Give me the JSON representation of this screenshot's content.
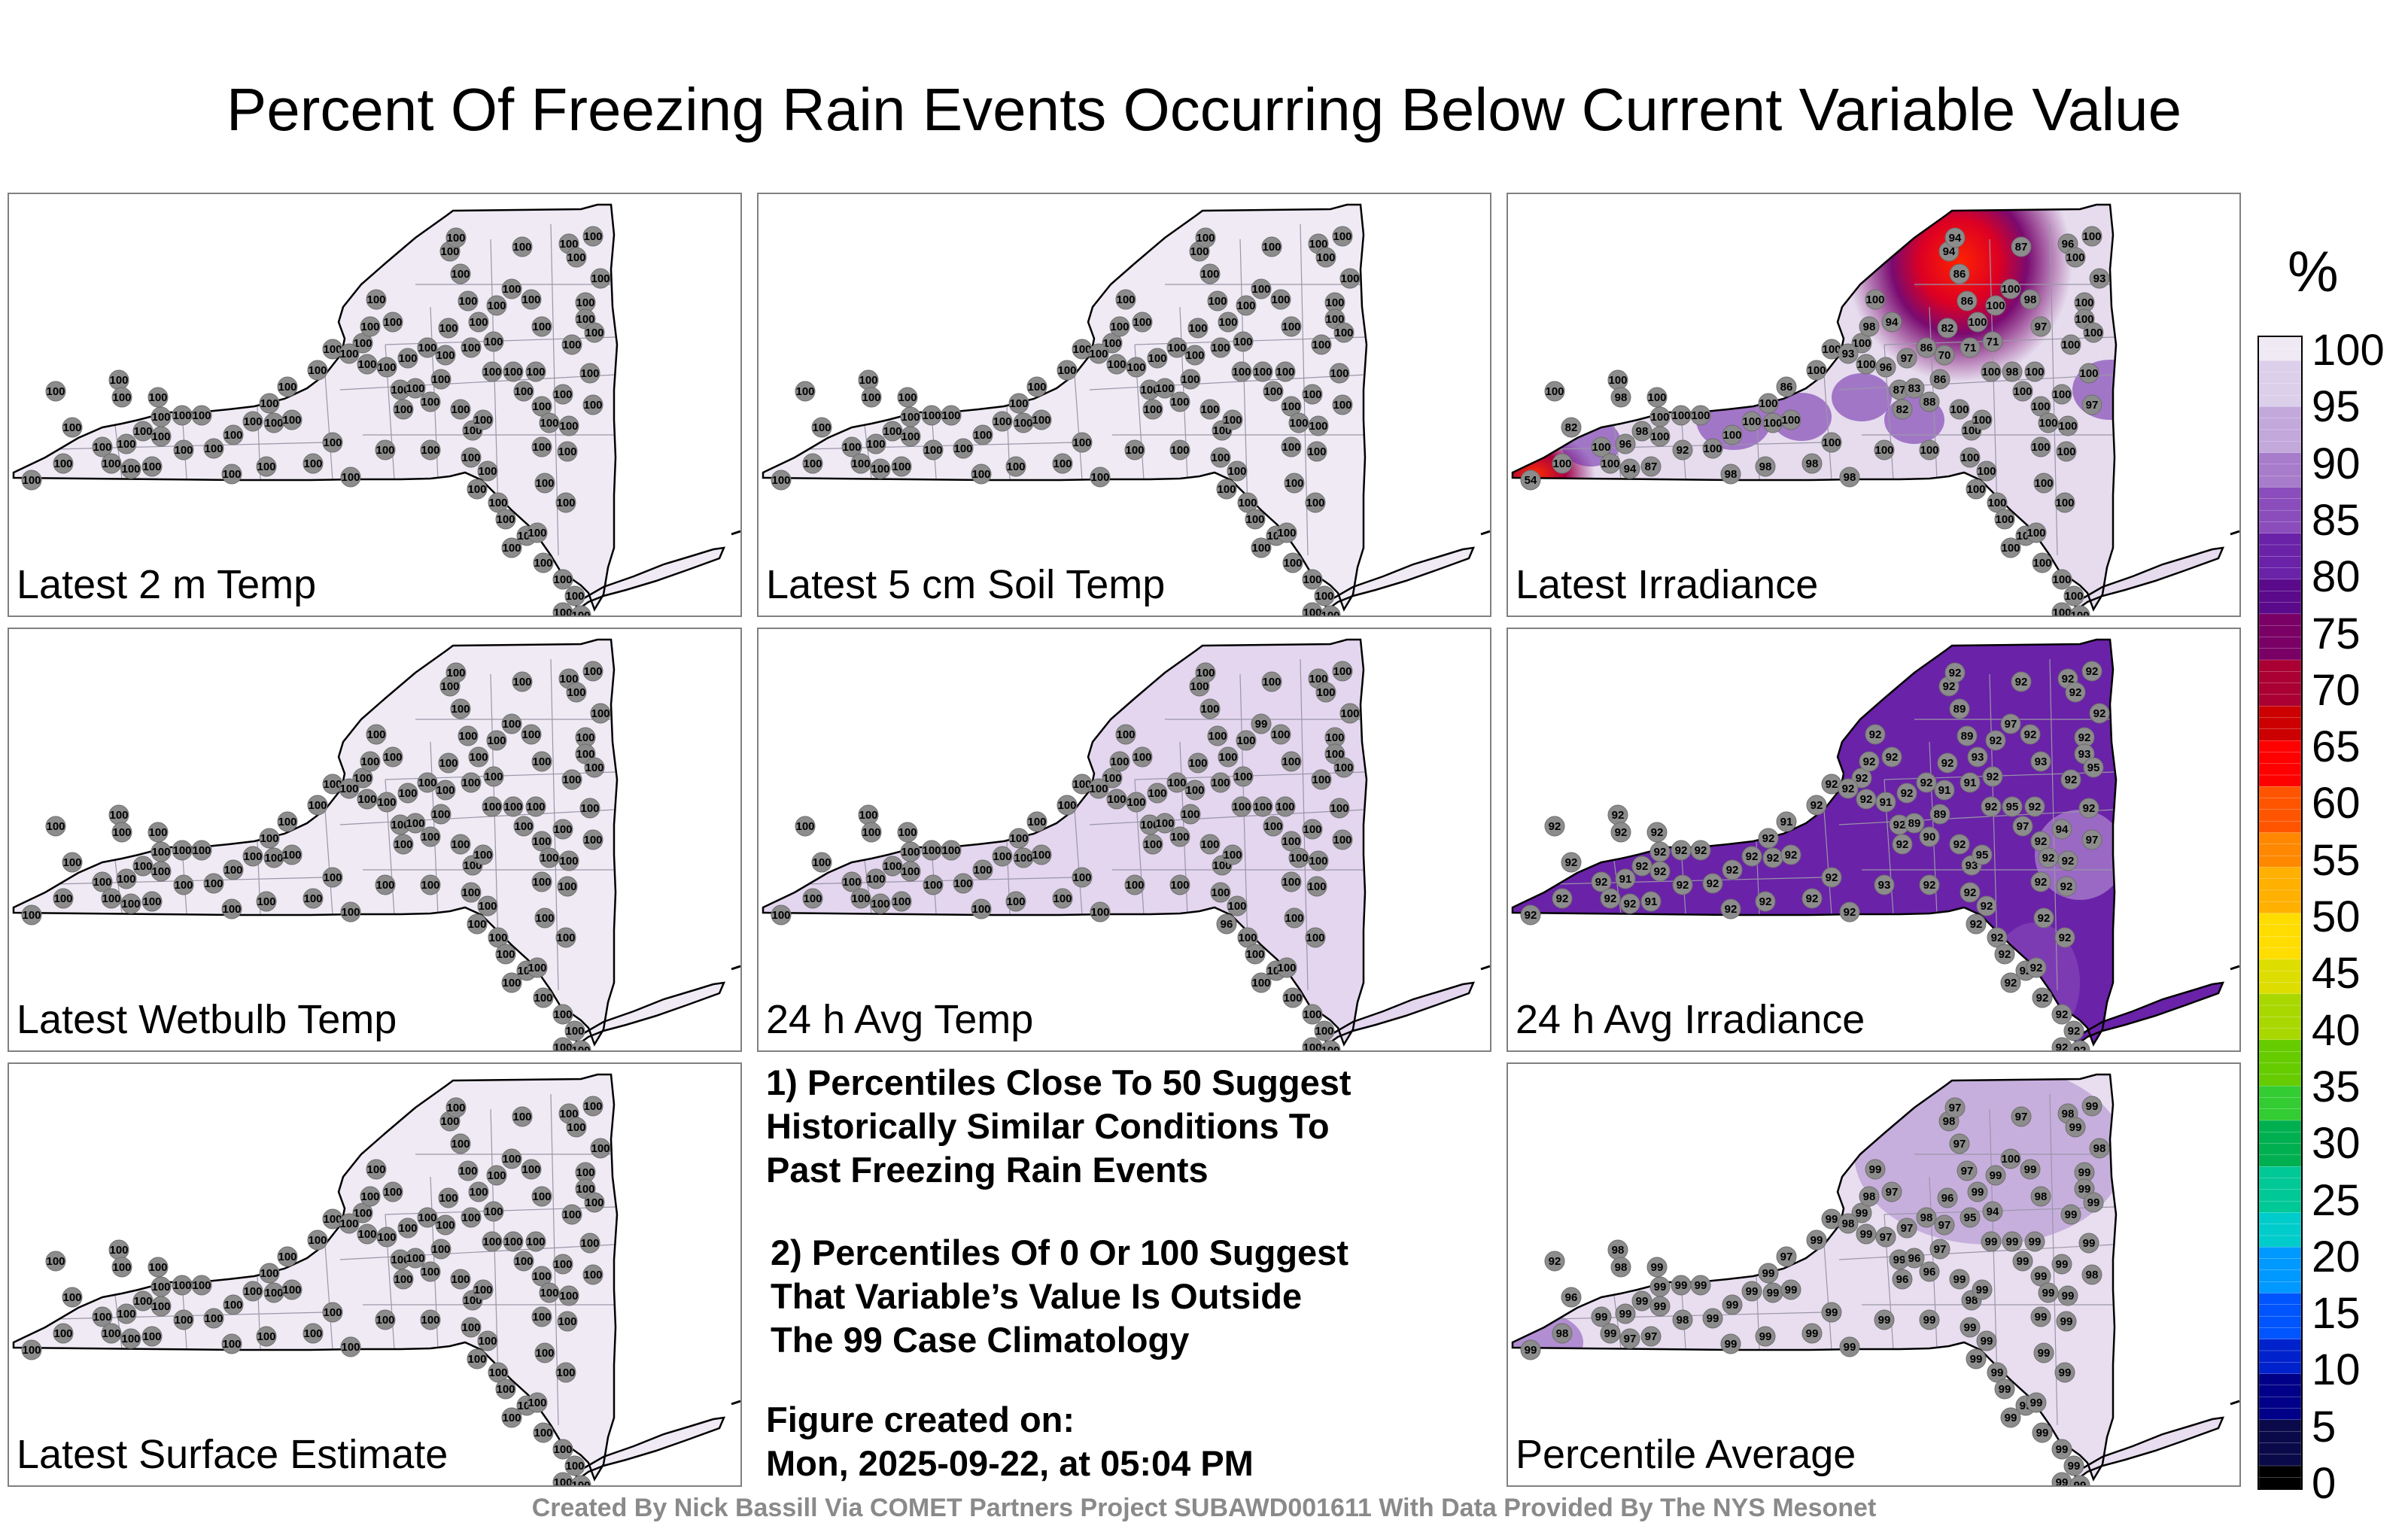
{
  "title": "Percent Of Freezing Rain Events Occurring Below Current Variable Value",
  "panels": [
    {
      "label": "Latest 2 m Temp",
      "mode": "uniform",
      "fill": "#efeaf4",
      "default": "100",
      "overrides": {}
    },
    {
      "label": "Latest 5 cm Soil Temp",
      "mode": "uniform",
      "fill": "#efeaf4",
      "default": "100",
      "overrides": {}
    },
    {
      "label": "Latest Irradiance",
      "mode": "irradiance",
      "fill": "#e6dcee",
      "default": "100",
      "overrides": {
        "3": "54",
        "2": "82",
        "6": "96",
        "7": "98",
        "12": "87",
        "13": "94",
        "11": "92",
        "16": "98",
        "24": "86",
        "28": "98",
        "29": "94",
        "31": "93",
        "35": "86",
        "36": "87",
        "33": "96",
        "34": "97",
        "37": "83",
        "38": "82",
        "39": "88",
        "40": "86",
        "41": "70",
        "42": "71",
        "43": "71",
        "44": "82",
        "45": "86",
        "46": "86",
        "47": "94",
        "48": "94",
        "49": "87",
        "50": "96",
        "53": "93",
        "58": "97",
        "59": "98",
        "64": "98",
        "70": "97",
        "96": "98",
        "97": "98",
        "98": "98",
        "99": "98"
      }
    },
    {
      "label": "Latest Wetbulb Temp",
      "mode": "uniform",
      "fill": "#efeaf4",
      "default": "100",
      "overrides": {}
    },
    {
      "label": "24 h Avg Temp",
      "mode": "uniform",
      "fill": "#e3d6ee",
      "default": "100",
      "overrides": {
        "60": "99",
        "80": "96"
      }
    },
    {
      "label": "24 h Avg Irradiance",
      "mode": "irradiance24",
      "fill": "#6a22a8",
      "default": "92",
      "overrides": {
        "6": "91",
        "12": "91",
        "24": "91",
        "33": "91",
        "37": "89",
        "40": "89",
        "41": "91",
        "42": "91",
        "45": "89",
        "46": "89",
        "39": "90",
        "55": "93",
        "56": "95",
        "58": "93",
        "60": "97",
        "62": "93",
        "64": "95",
        "66": "97",
        "68": "94",
        "70": "97",
        "76": "93",
        "92": "95",
        "94": "93"
      }
    },
    {
      "label": "Latest Surface Estimate",
      "mode": "uniform",
      "fill": "#efeaf4",
      "default": "100",
      "overrides": {}
    },
    {
      "label": "Percentile Average",
      "mode": "average",
      "fill": "#e8def0",
      "default": "99",
      "overrides": {
        "0": "92",
        "1": "98",
        "2": "96",
        "4": "98",
        "12": "97",
        "13": "97",
        "11": "98",
        "16": "98",
        "24": "97",
        "28": "98",
        "29": "97",
        "31": "98",
        "35": "98",
        "33": "97",
        "34": "97",
        "37": "96",
        "38": "96",
        "39": "96",
        "40": "97",
        "41": "97",
        "42": "95",
        "43": "94",
        "44": "96",
        "45": "97",
        "46": "97",
        "47": "98",
        "48": "97",
        "49": "97",
        "50": "98",
        "53": "98",
        "58": "98",
        "60": "100",
        "70": "98",
        "76": "98"
      }
    }
  ],
  "notes": [
    [
      "1) Percentiles Close To 50 Suggest",
      "Historically Similar Conditions To",
      "Past Freezing Rain Events"
    ],
    [
      "2) Percentiles Of 0 Or 100 Suggest",
      "That Variable’s Value Is Outside",
      "The 99 Case Climatology"
    ],
    [
      "Figure created on:",
      "Mon, 2025-09-22, at 05:04 PM"
    ]
  ],
  "credit": "Created By Nick Bassill Via COMET Partners Project SUBAWD001611 With Data Provided By The NYS Mesonet",
  "colorbar": {
    "unit": "%",
    "ticks": [
      "100",
      "95",
      "90",
      "85",
      "80",
      "75",
      "70",
      "65",
      "60",
      "55",
      "50",
      "45",
      "40",
      "35",
      "30",
      "25",
      "20",
      "15",
      "10",
      "5",
      "0"
    ],
    "colors": [
      "#000000",
      "#0a0a4a",
      "#000088",
      "#0022cc",
      "#0055ff",
      "#0099ff",
      "#00cccc",
      "#00c896",
      "#00b050",
      "#33cc33",
      "#66cc00",
      "#a8d800",
      "#dddd00",
      "#ffdd00",
      "#ffb000",
      "#ff8800",
      "#ff5500",
      "#ff0000",
      "#cc0000",
      "#aa0033",
      "#7a0066",
      "#5a0a8a",
      "#6a22a8",
      "#8a4dbb",
      "#a67ccb",
      "#c3a8dc",
      "#dccfea",
      "#efe9f4"
    ]
  },
  "accent_colors": {
    "station": "#8c8c8c",
    "outline": "#000000",
    "county": "#9a96a8"
  }
}
